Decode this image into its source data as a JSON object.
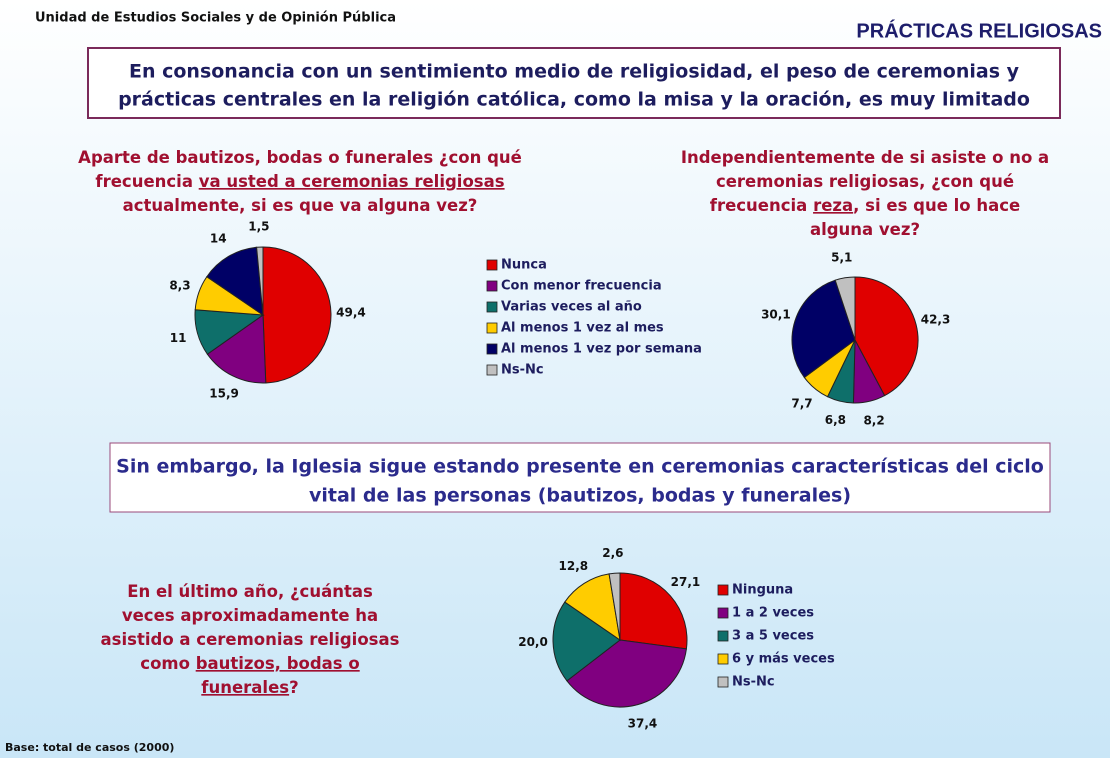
{
  "header": {
    "org": "Unidad de Estudios Sociales y de Opinión Pública",
    "title": "PRÁCTICAS RELIGIOSAS"
  },
  "box1": [
    "En consonancia con un sentimiento medio de religiosidad, el peso de ceremonias y",
    "prácticas centrales en la religión católica, como la misa y la oración, es muy limitado"
  ],
  "box2": [
    "Sin embargo, la Iglesia sigue estando presente en ceremonias características del ciclo",
    "vital de las personas  (bautizos, bodas y funerales)"
  ],
  "footer": "Base: total de casos (2000)",
  "chart_data": [
    {
      "type": "pie",
      "question": [
        [
          {
            "text": "Aparte de bautizos, bodas o funerales ¿con qué",
            "underline": false
          }
        ],
        [
          {
            "text": "frecuencia ",
            "underline": false
          },
          {
            "text": "va usted a ceremonias religiosas",
            "underline": true
          }
        ],
        [
          {
            "text": "actualmente, si es que va alguna vez?",
            "underline": false
          }
        ]
      ],
      "categories": [
        "Nunca",
        "Con menor frecuencia",
        "Varias veces al año",
        "Al menos 1 vez al mes",
        "Al menos 1 vez por semana",
        "Ns-Nc"
      ],
      "colors": [
        "#e00000",
        "#800080",
        "#0e6f6a",
        "#ffcc00",
        "#000066",
        "#c0c0c0"
      ],
      "values": [
        49.4,
        15.9,
        11,
        8.3,
        14,
        1.5
      ],
      "value_labels": [
        "49,4",
        "15,9",
        "11",
        "8,3",
        "14",
        "1,5"
      ]
    },
    {
      "type": "pie",
      "question": [
        [
          {
            "text": "Independientemente de si asiste o no a",
            "underline": false
          }
        ],
        [
          {
            "text": "ceremonias religiosas, ¿con qué",
            "underline": false
          }
        ],
        [
          {
            "text": "frecuencia ",
            "underline": false
          },
          {
            "text": "reza",
            "underline": true
          },
          {
            "text": ", si es que lo hace",
            "underline": false
          }
        ],
        [
          {
            "text": "alguna vez?",
            "underline": false
          }
        ]
      ],
      "colors": [
        "#e00000",
        "#800080",
        "#0e6f6a",
        "#ffcc00",
        "#000066",
        "#c0c0c0"
      ],
      "values": [
        42.3,
        8.2,
        6.8,
        7.7,
        30.1,
        5.1
      ],
      "value_labels": [
        "42,3",
        "8,2",
        "6,8",
        "7,7",
        "30,1",
        "5,1"
      ]
    },
    {
      "type": "pie",
      "question": [
        [
          {
            "text": "En el último año, ¿cuántas",
            "underline": false
          }
        ],
        [
          {
            "text": "veces aproximadamente ha",
            "underline": false
          }
        ],
        [
          {
            "text": "asistido a ceremonias religiosas",
            "underline": false
          }
        ],
        [
          {
            "text": "como ",
            "underline": false
          },
          {
            "text": "bautizos, bodas o",
            "underline": true
          }
        ],
        [
          {
            "text": "funerales",
            "underline": true
          },
          {
            "text": "?",
            "underline": false
          }
        ]
      ],
      "categories": [
        "Ninguna",
        "1 a 2 veces",
        "3 a 5 veces",
        "6 y más veces",
        "Ns-Nc"
      ],
      "colors": [
        "#e00000",
        "#800080",
        "#0e6f6a",
        "#ffcc00",
        "#c0c0c0"
      ],
      "values": [
        27.1,
        37.4,
        20.0,
        12.8,
        2.6
      ],
      "value_labels": [
        "27,1",
        "37,4",
        "20,0",
        "12,8",
        "2,6"
      ]
    }
  ]
}
